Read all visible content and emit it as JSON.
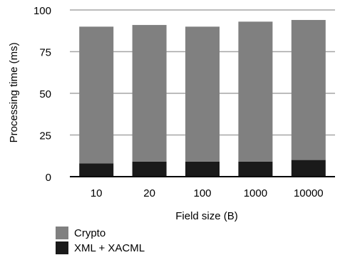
{
  "chart_data": {
    "type": "bar",
    "stacked": true,
    "xlabel": "Field size (B)",
    "ylabel": "Processing time (ms)",
    "categories": [
      "10",
      "20",
      "100",
      "1000",
      "10000"
    ],
    "ylim": [
      0,
      100
    ],
    "yticks": [
      0,
      25,
      50,
      75,
      100
    ],
    "grid": true,
    "legend_position": "bottom-left",
    "series": [
      {
        "name": "XML + XACML",
        "color": "#1a1a1a",
        "values": [
          8,
          9,
          9,
          9,
          10
        ]
      },
      {
        "name": "Crypto",
        "color": "#808080",
        "values": [
          82,
          82,
          81,
          84,
          84
        ]
      }
    ]
  }
}
